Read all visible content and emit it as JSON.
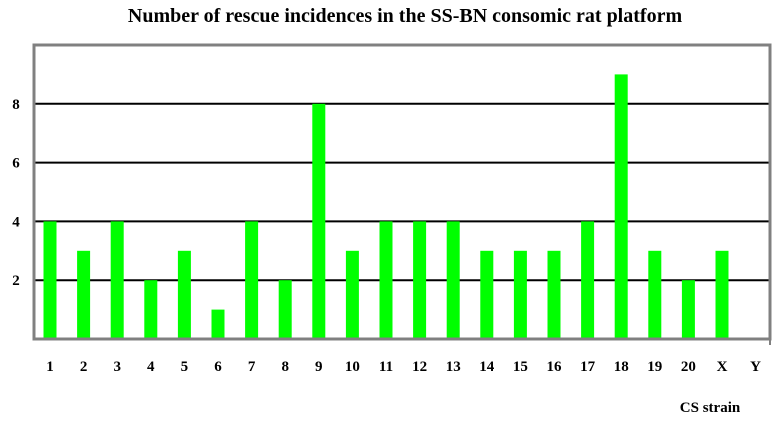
{
  "chart_data": {
    "type": "bar",
    "title": "Number of rescue incidences in the SS-BN consomic rat platform",
    "xlabel": "CS strain",
    "ylabel": "",
    "categories": [
      "1",
      "2",
      "3",
      "4",
      "5",
      "6",
      "7",
      "8",
      "9",
      "10",
      "11",
      "12",
      "13",
      "14",
      "15",
      "16",
      "17",
      "18",
      "19",
      "20",
      "X",
      "Y"
    ],
    "values": [
      4,
      3,
      4,
      2,
      3,
      1,
      4,
      2,
      8,
      3,
      4,
      4,
      4,
      3,
      3,
      3,
      4,
      9,
      3,
      2,
      3,
      0
    ],
    "ylim": [
      0,
      10
    ],
    "yticks": [
      2,
      4,
      6,
      8
    ],
    "grid": true,
    "legend": "none",
    "colors": {
      "bar": "#00ff00",
      "grid": "#000000",
      "frame": "#808080"
    }
  }
}
